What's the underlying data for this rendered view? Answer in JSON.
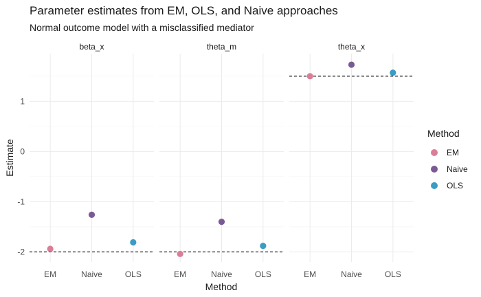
{
  "chart_data": {
    "type": "scatter",
    "title": "Parameter estimates from EM, OLS, and Naive approaches",
    "subtitle": "Normal outcome model with a misclassified mediator",
    "xlabel": "Method",
    "ylabel": "Estimate",
    "categories": [
      "EM",
      "Naive",
      "OLS"
    ],
    "ylim": [
      -2.2,
      1.95
    ],
    "yticks": [
      -2,
      -1,
      0,
      1
    ],
    "y_tick_labels": [
      "-2",
      "-1",
      "0",
      "1"
    ],
    "grid": true,
    "legend": {
      "title": "Method",
      "placement": "right",
      "entries": [
        "EM",
        "Naive",
        "OLS"
      ]
    },
    "colors": {
      "EM": "#d97e99",
      "Naive": "#7a5a95",
      "OLS": "#3b9cc4"
    },
    "reference_line_style": "dashed",
    "facets": [
      {
        "label": "beta_x",
        "reference_value": -2,
        "series": [
          {
            "name": "EM",
            "x": "EM",
            "y": -1.94
          },
          {
            "name": "Naive",
            "x": "Naive",
            "y": -1.26
          },
          {
            "name": "OLS",
            "x": "OLS",
            "y": -1.81
          }
        ]
      },
      {
        "label": "theta_m",
        "reference_value": -2,
        "series": [
          {
            "name": "EM",
            "x": "EM",
            "y": -2.04
          },
          {
            "name": "Naive",
            "x": "Naive",
            "y": -1.4
          },
          {
            "name": "OLS",
            "x": "OLS",
            "y": -1.88
          }
        ]
      },
      {
        "label": "theta_x",
        "reference_value": 1.5,
        "series": [
          {
            "name": "EM",
            "x": "EM",
            "y": 1.5
          },
          {
            "name": "Naive",
            "x": "Naive",
            "y": 1.73
          },
          {
            "name": "OLS",
            "x": "OLS",
            "y": 1.57
          }
        ]
      }
    ]
  }
}
